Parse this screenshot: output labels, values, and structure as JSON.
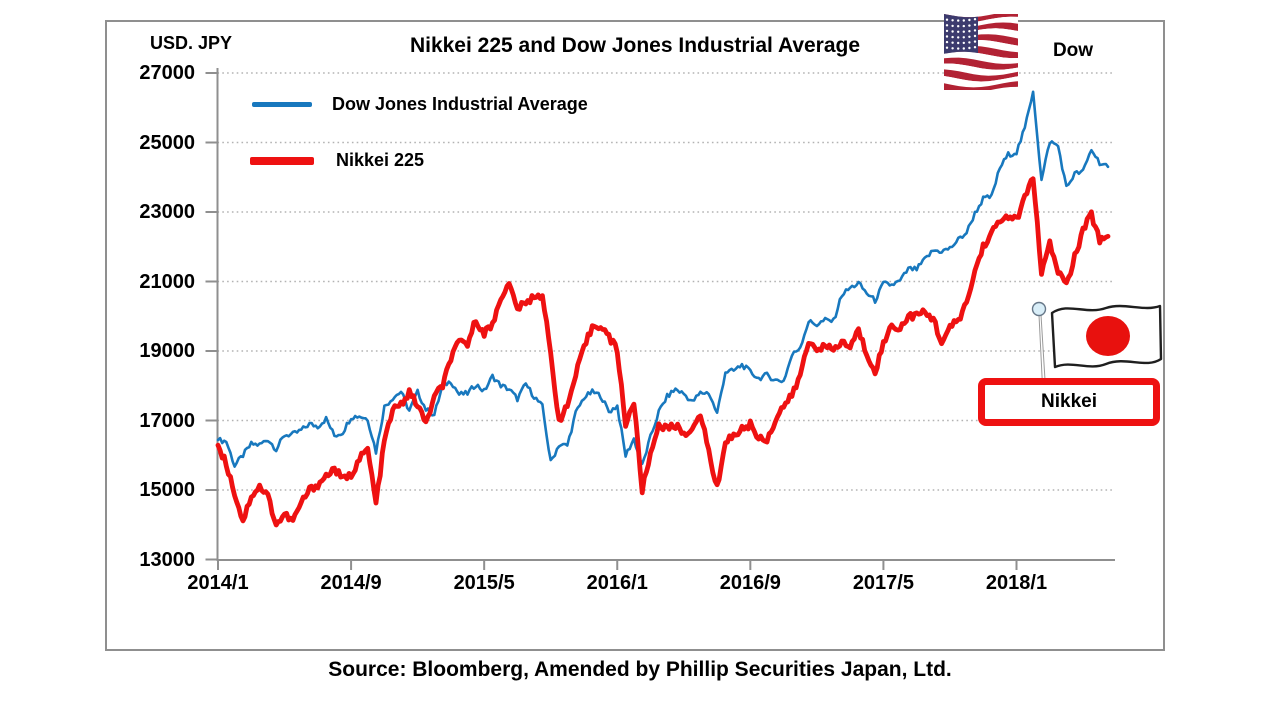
{
  "header": {
    "unit_label": "USD. JPY",
    "title": "Nikkei 225 and Dow Jones Industrial Average",
    "dow_label": "Dow",
    "nikkei_label": "Nikkei"
  },
  "legend": {
    "position": "top-left-inside",
    "items": [
      {
        "label": "Dow Jones Industrial Average",
        "color": "#1878be"
      },
      {
        "label": "Nikkei 225",
        "color": "#ee1111"
      }
    ]
  },
  "footer": {
    "source": "Source: Bloomberg, Amended by Phillip Securities Japan, Ltd."
  },
  "icons": {
    "us_flag": {
      "red": "#b22234",
      "blue": "#3c3b6e",
      "white": "#ffffff"
    },
    "japan_flag": {
      "red": "#e8110e",
      "outline": "#1f1f1f"
    },
    "pin": {
      "head": "#d9eef8",
      "stroke": "#667788",
      "pole": "#999999"
    },
    "badge_border": "#ee1111"
  },
  "chart_data": {
    "type": "line",
    "title": "Nikkei 225 and Dow Jones Industrial Average",
    "ylabel": "USD. JPY",
    "xlabel": "",
    "ylim": [
      13000,
      27000
    ],
    "y_ticks": [
      27000,
      25000,
      23000,
      21000,
      19000,
      17000,
      15000,
      13000
    ],
    "x_ticks": [
      "2014/1",
      "2014/9",
      "2015/5",
      "2016/1",
      "2016/9",
      "2017/5",
      "2018/1"
    ],
    "x_start": "2014/1",
    "x_end": "2018/6",
    "sampling": "semi-monthly anchors (start value, then mid-month and month-end per month)",
    "grid": "dotted horizontal gridlines at each 2000",
    "legend_position": "top-left inside plot",
    "layout": {
      "jitter": [
        75,
        105
      ],
      "substeps": 4
    },
    "series": [
      {
        "name": "Dow Jones Industrial Average",
        "color": "#1878be",
        "width": 2.6,
        "values": [
          16440,
          16400,
          15700,
          16000,
          16320,
          16300,
          16460,
          16170,
          16580,
          16600,
          16720,
          16900,
          16830,
          17050,
          16560,
          16660,
          17100,
          17130,
          17040,
          16100,
          17390,
          17650,
          17830,
          17280,
          17820,
          17320,
          17160,
          18000,
          18130,
          17750,
          17780,
          18040,
          17840,
          18270,
          18010,
          17900,
          17620,
          18050,
          17690,
          17400,
          15800,
          16300,
          16280,
          17210,
          17660,
          17820,
          17720,
          17250,
          17420,
          15990,
          16470,
          15700,
          16520,
          17250,
          17690,
          17900,
          17770,
          17530,
          17790,
          17800,
          17200,
          18400,
          18430,
          18600,
          18400,
          18210,
          18310,
          18160,
          18140,
          18870,
          19120,
          19850,
          19760,
          19890,
          19860,
          20620,
          20810,
          20950,
          20660,
          20450,
          20940,
          20900,
          21010,
          21360,
          21350,
          21640,
          21890,
          21870,
          21950,
          22200,
          22410,
          22960,
          23380,
          23440,
          24270,
          24650,
          24720,
          25400,
          26500,
          23900,
          25030,
          24900,
          23700,
          24100,
          24160,
          24800,
          24420,
          24300
        ]
      },
      {
        "name": "Nikkei 225",
        "color": "#ee1111",
        "width": 4.8,
        "values": [
          16290,
          15750,
          14910,
          14100,
          14840,
          15100,
          14830,
          14000,
          14300,
          14100,
          14630,
          15000,
          15160,
          15400,
          15620,
          15300,
          15430,
          15900,
          16170,
          14600,
          16410,
          17300,
          17460,
          17800,
          17450,
          16900,
          17670,
          18000,
          18800,
          19250,
          19210,
          19900,
          19520,
          19750,
          20560,
          20900,
          20240,
          20350,
          20590,
          20620,
          18890,
          17000,
          17400,
          18300,
          19080,
          19700,
          19750,
          19400,
          19030,
          16900,
          17520,
          15000,
          16030,
          16900,
          16760,
          16850,
          16670,
          16650,
          17230,
          16100,
          15050,
          16400,
          16570,
          16750,
          16890,
          16500,
          16450,
          17000,
          17430,
          17700,
          18310,
          19250,
          19110,
          19100,
          19040,
          19250,
          19120,
          19600,
          18910,
          18430,
          19200,
          19750,
          19650,
          20000,
          20030,
          20100,
          19930,
          19250,
          19650,
          19900,
          20360,
          21300,
          22010,
          22400,
          22720,
          22900,
          22760,
          23400,
          24050,
          21200,
          22070,
          21300,
          20900,
          21700,
          22470,
          22930,
          22200,
          22300
        ]
      }
    ]
  }
}
